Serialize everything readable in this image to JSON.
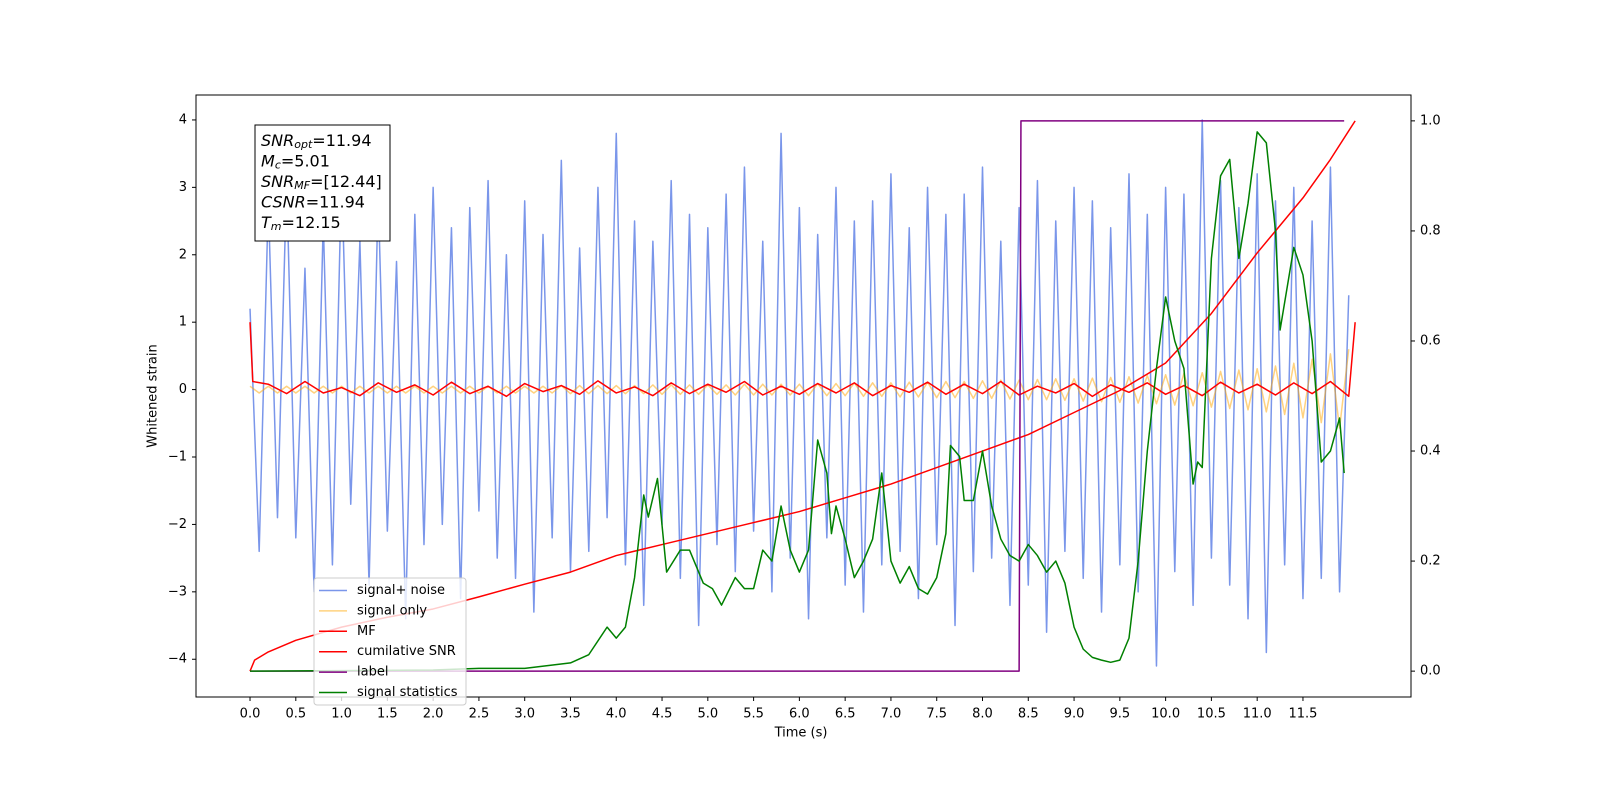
{
  "chart_data": {
    "type": "line",
    "xlabel": "Time (s)",
    "ylabel": "Whitened strain",
    "xlim": [
      -0.59,
      12.68
    ],
    "ylim": [
      -4.56,
      4.37
    ],
    "y2lim": [
      -0.047,
      1.047
    ],
    "xticks": [
      {
        "value": 0,
        "label": "0.0"
      },
      0.5,
      {
        "value": 1,
        "label": "1.0"
      },
      1.5,
      {
        "value": 2,
        "label": "2.0"
      },
      2.5,
      {
        "value": 3,
        "label": "3.0"
      },
      3.5,
      {
        "value": 4,
        "label": "4.0"
      },
      4.5,
      {
        "value": 5,
        "label": "5.0"
      },
      5.5,
      {
        "value": 6,
        "label": "6.0"
      },
      6.5,
      {
        "value": 7,
        "label": "7.0"
      },
      7.5,
      {
        "value": 8,
        "label": "8.0"
      },
      8.5,
      {
        "value": 9,
        "label": "9.0"
      },
      9.5,
      {
        "value": 10,
        "label": "10.0"
      },
      10.5,
      {
        "value": 11,
        "label": "11.0"
      },
      11.5
    ],
    "yticks": [
      {
        "value": -4,
        "label": "−4"
      },
      {
        "value": -3,
        "label": "−3"
      },
      {
        "value": -2,
        "label": "−2"
      },
      {
        "value": -1,
        "label": "−1"
      },
      0,
      1,
      2,
      3,
      4
    ],
    "y2ticks": [
      {
        "value": 0,
        "label": "0.0"
      },
      0.2,
      0.4,
      0.6,
      0.8,
      {
        "value": 1,
        "label": "1.0"
      }
    ],
    "legend": "lower left",
    "annotation": [
      {
        "name": "SNR",
        "sub": "opt",
        "text": "=11.94"
      },
      {
        "name": "M",
        "sub": "c",
        "text": "=5.01"
      },
      {
        "name": "SNR",
        "sub": "MF",
        "text": "=[12.44]"
      },
      {
        "name": "CSNR",
        "sub": "",
        "text": "=11.94"
      },
      {
        "name": "T",
        "sub": "m",
        "text": "=12.15"
      }
    ],
    "series": [
      {
        "name": "signal+ noise",
        "color": "#4169e1",
        "axis": "y",
        "x": [
          0,
          0.1,
          0.2,
          0.3,
          0.4,
          0.5,
          0.6,
          0.7,
          0.8,
          0.9,
          1,
          1.1,
          1.2,
          1.3,
          1.4,
          1.5,
          1.6,
          1.7,
          1.8,
          1.9,
          2,
          2.1,
          2.2,
          2.3,
          2.4,
          2.5,
          2.6,
          2.7,
          2.8,
          2.9,
          3,
          3.1,
          3.2,
          3.3,
          3.4,
          3.5,
          3.6,
          3.7,
          3.8,
          3.9,
          4,
          4.1,
          4.2,
          4.3,
          4.4,
          4.5,
          4.6,
          4.7,
          4.8,
          4.9,
          5,
          5.1,
          5.2,
          5.3,
          5.4,
          5.5,
          5.6,
          5.7,
          5.8,
          5.9,
          6,
          6.1,
          6.2,
          6.3,
          6.4,
          6.5,
          6.6,
          6.7,
          6.8,
          6.9,
          7,
          7.1,
          7.2,
          7.3,
          7.4,
          7.5,
          7.6,
          7.7,
          7.8,
          7.9,
          8,
          8.1,
          8.2,
          8.3,
          8.4,
          8.5,
          8.6,
          8.7,
          8.8,
          8.9,
          9,
          9.1,
          9.2,
          9.3,
          9.4,
          9.5,
          9.6,
          9.7,
          9.8,
          9.9,
          10,
          10.1,
          10.2,
          10.3,
          10.4,
          10.5,
          10.6,
          10.7,
          10.8,
          10.9,
          11,
          11.1,
          11.2,
          11.3,
          11.4,
          11.5,
          11.6,
          11.7,
          11.8,
          11.9,
          12
        ],
        "values": [
          1.2,
          -2.4,
          2.8,
          -1.9,
          3.1,
          -2.2,
          1.8,
          -3.0,
          2.5,
          -2.6,
          3.2,
          -1.7,
          2.2,
          -2.9,
          2.9,
          -2.1,
          1.9,
          -3.4,
          2.6,
          -2.3,
          3.0,
          -2.0,
          2.4,
          -3.1,
          2.7,
          -1.8,
          3.1,
          -2.5,
          2.0,
          -2.8,
          2.8,
          -3.3,
          2.3,
          -2.2,
          3.4,
          -2.7,
          2.1,
          -2.4,
          3.0,
          -1.9,
          3.8,
          -2.6,
          2.5,
          -3.2,
          2.2,
          -2.0,
          3.1,
          -2.8,
          2.6,
          -3.5,
          2.4,
          -2.3,
          2.9,
          -2.7,
          3.3,
          -2.1,
          2.2,
          -3.0,
          3.8,
          -2.5,
          2.7,
          -3.4,
          2.3,
          -2.2,
          3.0,
          -2.9,
          2.5,
          -3.3,
          2.8,
          -2.6,
          3.2,
          -2.4,
          2.4,
          -3.1,
          3.0,
          -2.3,
          2.6,
          -3.5,
          2.9,
          -2.7,
          3.3,
          -2.5,
          2.2,
          -3.2,
          2.7,
          -2.9,
          3.1,
          -3.6,
          2.5,
          -2.4,
          3.0,
          -2.8,
          2.8,
          -3.3,
          2.4,
          -2.6,
          3.2,
          -3.0,
          2.6,
          -4.1,
          3.0,
          -2.7,
          2.9,
          -3.2,
          4.0,
          -2.5,
          3.1,
          -2.9,
          2.7,
          -3.4,
          3.2,
          -3.9,
          2.8,
          -2.6,
          3.0,
          -3.1,
          2.5,
          -2.8,
          3.3,
          -3.0,
          1.4
        ]
      },
      {
        "name": "signal only",
        "color": "#ffa500",
        "axis": "y",
        "x": [
          0,
          0.1,
          0.2,
          0.3,
          0.4,
          0.5,
          0.6,
          0.7,
          0.8,
          0.9,
          1,
          1.1,
          1.2,
          1.3,
          1.4,
          1.5,
          1.6,
          1.7,
          1.8,
          1.9,
          2,
          2.1,
          2.2,
          2.3,
          2.4,
          2.5,
          2.6,
          2.7,
          2.8,
          2.9,
          3,
          3.1,
          3.2,
          3.3,
          3.4,
          3.5,
          3.6,
          3.7,
          3.8,
          3.9,
          4,
          4.1,
          4.2,
          4.3,
          4.4,
          4.5,
          4.6,
          4.7,
          4.8,
          4.9,
          5,
          5.1,
          5.2,
          5.3,
          5.4,
          5.5,
          5.6,
          5.7,
          5.8,
          5.9,
          6,
          6.1,
          6.2,
          6.3,
          6.4,
          6.5,
          6.6,
          6.7,
          6.8,
          6.9,
          7,
          7.1,
          7.2,
          7.3,
          7.4,
          7.5,
          7.6,
          7.7,
          7.8,
          7.9,
          8,
          8.1,
          8.2,
          8.3,
          8.4,
          8.5,
          8.6,
          8.7,
          8.8,
          8.9,
          9,
          9.1,
          9.2,
          9.3,
          9.4,
          9.5,
          9.6,
          9.7,
          9.8,
          9.9,
          10,
          10.1,
          10.2,
          10.3,
          10.4,
          10.5,
          10.6,
          10.7,
          10.8,
          10.9,
          11,
          11.1,
          11.2,
          11.3,
          11.4,
          11.5,
          11.6,
          11.7,
          11.8,
          11.9,
          12
        ],
        "values": [
          0.05,
          -0.05,
          0.05,
          -0.05,
          0.05,
          -0.05,
          0.05,
          -0.05,
          0.05,
          -0.05,
          0.05,
          -0.05,
          0.05,
          -0.05,
          0.05,
          -0.05,
          0.05,
          -0.05,
          0.05,
          -0.05,
          0.05,
          -0.05,
          0.05,
          -0.05,
          0.05,
          -0.05,
          0.05,
          -0.05,
          0.05,
          -0.05,
          0.05,
          -0.05,
          0.05,
          -0.05,
          0.06,
          -0.06,
          0.06,
          -0.06,
          0.06,
          -0.06,
          0.06,
          -0.06,
          0.06,
          -0.06,
          0.07,
          -0.07,
          0.07,
          -0.07,
          0.07,
          -0.07,
          0.07,
          -0.07,
          0.07,
          -0.08,
          0.08,
          -0.08,
          0.08,
          -0.08,
          0.08,
          -0.08,
          0.08,
          -0.09,
          0.09,
          -0.09,
          0.09,
          -0.09,
          0.1,
          -0.1,
          0.1,
          -0.1,
          0.1,
          -0.11,
          0.11,
          -0.11,
          0.11,
          -0.12,
          0.12,
          -0.12,
          0.12,
          -0.13,
          0.13,
          -0.13,
          0.14,
          -0.14,
          0.14,
          -0.15,
          0.15,
          -0.15,
          0.16,
          -0.16,
          0.16,
          -0.17,
          0.17,
          -0.18,
          0.18,
          -0.19,
          0.19,
          -0.2,
          0.21,
          -0.21,
          0.22,
          -0.23,
          0.24,
          -0.24,
          0.25,
          -0.26,
          0.27,
          -0.28,
          0.29,
          -0.3,
          0.31,
          -0.33,
          0.35,
          -0.37,
          0.39,
          -0.42,
          0.45,
          -0.49,
          0.53,
          -0.57,
          0.6
        ]
      },
      {
        "name": "MF",
        "color": "#ff0000",
        "axis": "y",
        "x": [
          0,
          0.03,
          0.2,
          0.4,
          0.6,
          0.8,
          1,
          1.2,
          1.4,
          1.6,
          1.8,
          2,
          2.2,
          2.4,
          2.6,
          2.8,
          3,
          3.2,
          3.4,
          3.6,
          3.8,
          4,
          4.2,
          4.4,
          4.6,
          4.8,
          5,
          5.2,
          5.4,
          5.6,
          5.8,
          6,
          6.2,
          6.4,
          6.6,
          6.8,
          7,
          7.2,
          7.4,
          7.6,
          7.8,
          8,
          8.2,
          8.4,
          8.6,
          8.8,
          9,
          9.2,
          9.4,
          9.6,
          9.8,
          10,
          10.2,
          10.4,
          10.6,
          10.8,
          11,
          11.2,
          11.4,
          11.6,
          11.8,
          12,
          12.07
        ],
        "values": [
          1,
          0.12,
          0.08,
          -0.06,
          0.12,
          -0.05,
          0.03,
          -0.09,
          0.1,
          -0.04,
          0.07,
          -0.08,
          0.11,
          -0.06,
          0.05,
          -0.1,
          0.09,
          -0.03,
          0.06,
          -0.07,
          0.13,
          -0.05,
          0.04,
          -0.09,
          0.1,
          -0.06,
          0.08,
          -0.04,
          0.12,
          -0.08,
          0.05,
          -0.07,
          0.09,
          -0.05,
          0.1,
          -0.09,
          0.06,
          -0.04,
          0.11,
          -0.07,
          0.08,
          -0.06,
          0.12,
          -0.08,
          0.05,
          -0.05,
          0.09,
          -0.1,
          0.07,
          -0.04,
          0.1,
          -0.07,
          0.06,
          -0.09,
          0.11,
          -0.05,
          0.08,
          -0.08,
          0.1,
          -0.06,
          0.12,
          -0.1,
          1
        ]
      },
      {
        "name": "cumilative SNR",
        "color": "#ff0000",
        "axis": "y2",
        "x": [
          0,
          0.05,
          0.2,
          0.5,
          1,
          1.5,
          2,
          2.5,
          3,
          3.5,
          4,
          4.5,
          5,
          5.5,
          6,
          6.5,
          7,
          7.5,
          8,
          8.5,
          9,
          9.5,
          10,
          10.5,
          11,
          11.5,
          11.8,
          12.07
        ],
        "values": [
          0,
          0.02,
          0.035,
          0.056,
          0.08,
          0.098,
          0.113,
          0.135,
          0.158,
          0.18,
          0.21,
          0.23,
          0.25,
          0.27,
          0.29,
          0.315,
          0.34,
          0.37,
          0.4,
          0.43,
          0.47,
          0.51,
          0.56,
          0.65,
          0.76,
          0.86,
          0.93,
          1
        ]
      },
      {
        "name": "label",
        "color": "#800080",
        "axis": "y2",
        "x": [
          0,
          8.4,
          8.42,
          11.95
        ],
        "values": [
          0,
          0,
          1,
          1
        ]
      },
      {
        "name": "signal statistics",
        "color": "#008000",
        "axis": "y2",
        "x": [
          0,
          1,
          2,
          2.5,
          3,
          3.5,
          3.7,
          3.9,
          4,
          4.1,
          4.2,
          4.3,
          4.35,
          4.45,
          4.55,
          4.7,
          4.8,
          4.95,
          5.05,
          5.15,
          5.3,
          5.4,
          5.5,
          5.6,
          5.7,
          5.8,
          5.9,
          6,
          6.1,
          6.2,
          6.3,
          6.35,
          6.4,
          6.5,
          6.6,
          6.7,
          6.8,
          6.9,
          7,
          7.1,
          7.2,
          7.3,
          7.4,
          7.5,
          7.6,
          7.65,
          7.75,
          7.8,
          7.9,
          8,
          8.1,
          8.2,
          8.3,
          8.4,
          8.5,
          8.6,
          8.7,
          8.8,
          8.9,
          9,
          9.1,
          9.2,
          9.3,
          9.4,
          9.5,
          9.6,
          9.7,
          9.8,
          9.9,
          10,
          10.1,
          10.2,
          10.3,
          10.35,
          10.4,
          10.5,
          10.6,
          10.7,
          10.8,
          10.9,
          11,
          11.1,
          11.2,
          11.25,
          11.4,
          11.5,
          11.6,
          11.7,
          11.8,
          11.9,
          11.95
        ],
        "values": [
          0,
          0.001,
          0.002,
          0.005,
          0.005,
          0.015,
          0.03,
          0.08,
          0.06,
          0.08,
          0.17,
          0.32,
          0.28,
          0.35,
          0.18,
          0.22,
          0.22,
          0.16,
          0.15,
          0.12,
          0.17,
          0.15,
          0.15,
          0.22,
          0.2,
          0.3,
          0.22,
          0.18,
          0.22,
          0.42,
          0.36,
          0.25,
          0.3,
          0.24,
          0.17,
          0.2,
          0.24,
          0.36,
          0.2,
          0.16,
          0.19,
          0.15,
          0.14,
          0.17,
          0.25,
          0.41,
          0.39,
          0.31,
          0.31,
          0.4,
          0.3,
          0.24,
          0.21,
          0.2,
          0.23,
          0.21,
          0.18,
          0.2,
          0.16,
          0.08,
          0.04,
          0.025,
          0.02,
          0.016,
          0.02,
          0.06,
          0.2,
          0.4,
          0.55,
          0.68,
          0.6,
          0.55,
          0.34,
          0.38,
          0.37,
          0.75,
          0.9,
          0.93,
          0.75,
          0.85,
          0.98,
          0.96,
          0.8,
          0.62,
          0.77,
          0.72,
          0.6,
          0.38,
          0.4,
          0.46,
          0.36
        ]
      }
    ]
  }
}
